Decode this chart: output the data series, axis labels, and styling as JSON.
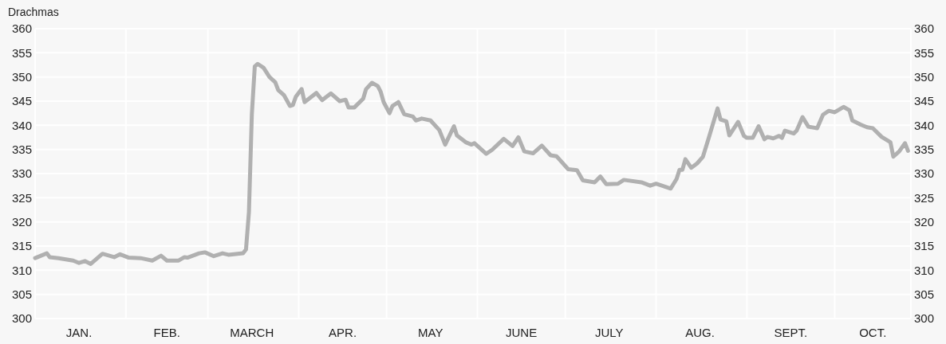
{
  "chart_data": {
    "type": "line",
    "ylabel": "Drachmas",
    "x": [
      "--01-01",
      "--01-05",
      "--01-06",
      "--01-09",
      "--01-14",
      "--01-16",
      "--01-18",
      "--01-20",
      "--01-24",
      "--01-28",
      "--01-30",
      "--02-02",
      "--02-06",
      "--02-10",
      "--02-13",
      "--02-15",
      "--02-19",
      "--02-21",
      "--02-22",
      "--02-26",
      "--02-28",
      "--03-03",
      "--03-06",
      "--03-08",
      "--03-13",
      "--03-14",
      "--03-15",
      "--03-16",
      "--03-17",
      "--03-18",
      "--03-20",
      "--03-22",
      "--03-24",
      "--03-25",
      "--03-27",
      "--03-29",
      "--03-30",
      "--03-31",
      "--04-02",
      "--04-03",
      "--04-07",
      "--04-09",
      "--04-12",
      "--04-15",
      "--04-17",
      "--04-18",
      "--04-20",
      "--04-23",
      "--04-24",
      "--04-26",
      "--04-28",
      "--04-29",
      "--04-30",
      "--05-02",
      "--05-03",
      "--05-05",
      "--05-07",
      "--05-10",
      "--05-11",
      "--05-13",
      "--05-16",
      "--05-19",
      "--05-21",
      "--05-24",
      "--05-25",
      "--05-28",
      "--05-30",
      "--05-31",
      "--06-04",
      "--06-06",
      "--06-10",
      "--06-13",
      "--06-15",
      "--06-17",
      "--06-20",
      "--06-23",
      "--06-26",
      "--06-28",
      "--07-02",
      "--07-05",
      "--07-07",
      "--07-11",
      "--07-13",
      "--07-15",
      "--07-19",
      "--07-21",
      "--07-27",
      "--07-30",
      "--08-01",
      "--08-06",
      "--08-08",
      "--08-09",
      "--08-10",
      "--08-11",
      "--08-13",
      "--08-15",
      "--08-17",
      "--08-19",
      "--08-22",
      "--08-23",
      "--08-25",
      "--08-26",
      "--08-29",
      "--08-31",
      "--09-01",
      "--09-03",
      "--09-05",
      "--09-07",
      "--09-08",
      "--09-10",
      "--09-12",
      "--09-13",
      "--09-14",
      "--09-17",
      "--09-18",
      "--09-20",
      "--09-22",
      "--09-25",
      "--09-27",
      "--09-29",
      "--10-01",
      "--10-04",
      "--10-06",
      "--10-07",
      "--10-10",
      "--10-12",
      "--10-14",
      "--10-17",
      "--10-20",
      "--10-21",
      "--10-23",
      "--10-25",
      "--10-26"
    ],
    "series": [
      {
        "color": "#b0b0b0",
        "values": [
          312.5,
          313.5,
          312.7,
          312.5,
          312.0,
          311.5,
          311.9,
          311.3,
          313.4,
          312.7,
          313.3,
          312.6,
          312.5,
          312.0,
          313.0,
          312.0,
          312.0,
          312.7,
          312.6,
          313.5,
          313.7,
          312.9,
          313.5,
          313.2,
          313.5,
          314.3,
          322,
          342.3,
          352.2,
          352.7,
          351.9,
          350,
          348.9,
          347.3,
          346.2,
          344,
          344.2,
          345.9,
          347.5,
          344.8,
          346.7,
          345.2,
          346.6,
          345.0,
          345.3,
          343.7,
          343.7,
          345.5,
          347.5,
          348.8,
          348.1,
          346.9,
          344.8,
          342.5,
          344.0,
          344.8,
          342.3,
          341.8,
          341.0,
          341.4,
          341.0,
          339.0,
          336.0,
          339.8,
          337.9,
          336.5,
          336.0,
          336.3,
          334.1,
          334.9,
          337.2,
          335.7,
          337.5,
          334.6,
          334.2,
          335.8,
          333.8,
          333.6,
          330.9,
          330.7,
          328.6,
          328.2,
          329.4,
          327.8,
          327.9,
          328.7,
          328.2,
          327.5,
          327.9,
          326.9,
          328.9,
          330.8,
          330.8,
          333.0,
          331.2,
          332.1,
          333.5,
          337.4,
          343.5,
          341.2,
          340.8,
          337.9,
          340.7,
          337.8,
          337.4,
          337.4,
          339.8,
          337.1,
          337.6,
          337.3,
          337.8,
          337.4,
          338.9,
          338.3,
          338.9,
          341.7,
          339.7,
          339.4,
          342.2,
          343.0,
          342.7,
          343.8,
          343.1,
          341.0,
          340.1,
          339.6,
          339.4,
          337.6,
          336.5,
          333.5,
          334.6,
          336.3,
          334.7
        ]
      }
    ],
    "xlim": [
      "--01-01",
      "--10-27"
    ],
    "xticks": [
      {
        "value": "--01-16",
        "label": "JAN."
      },
      {
        "value": "--02-01",
        "label": null
      },
      {
        "value": "--02-15",
        "label": "FEB."
      },
      {
        "value": "--03-01",
        "label": null
      },
      {
        "value": "--03-16",
        "label": "MARCH"
      },
      {
        "value": "--04-01",
        "label": null
      },
      {
        "value": "--04-16",
        "label": "APR."
      },
      {
        "value": "--05-01",
        "label": null
      },
      {
        "value": "--05-16",
        "label": "MAY"
      },
      {
        "value": "--06-01",
        "label": null
      },
      {
        "value": "--06-16",
        "label": "JUNE"
      },
      {
        "value": "--07-01",
        "label": null
      },
      {
        "value": "--07-16",
        "label": "JULY"
      },
      {
        "value": "--08-01",
        "label": null
      },
      {
        "value": "--08-16",
        "label": "AUG."
      },
      {
        "value": "--09-01",
        "label": null
      },
      {
        "value": "--09-16",
        "label": "SEPT."
      },
      {
        "value": "--10-01",
        "label": null
      },
      {
        "value": "--10-14",
        "label": "OCT."
      }
    ],
    "ylim": [
      300,
      360
    ],
    "yticks": [
      300,
      305,
      310,
      315,
      320,
      325,
      330,
      335,
      340,
      345,
      350,
      355,
      360
    ],
    "y2lim": [
      300,
      360
    ],
    "y2ticks": [
      300,
      305,
      310,
      315,
      320,
      325,
      330,
      335,
      340,
      345,
      350,
      355,
      360
    ],
    "grid": true
  }
}
